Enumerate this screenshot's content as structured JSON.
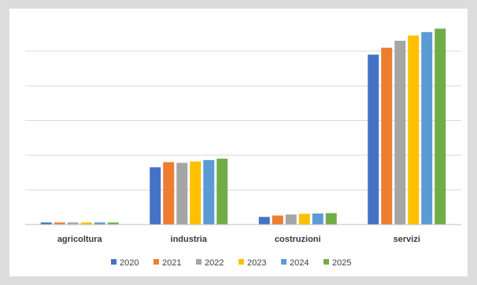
{
  "chart_data": {
    "type": "bar",
    "categories": [
      "agricoltura",
      "industria",
      "costruzioni",
      "servizi"
    ],
    "series": [
      {
        "name": "2020",
        "color": "#4472c4",
        "values": [
          0.6,
          16.5,
          2.2,
          49.0
        ]
      },
      {
        "name": "2021",
        "color": "#ed7d31",
        "values": [
          0.6,
          18.0,
          2.6,
          51.0
        ]
      },
      {
        "name": "2022",
        "color": "#a5a5a5",
        "values": [
          0.6,
          17.8,
          2.9,
          53.0
        ]
      },
      {
        "name": "2023",
        "color": "#ffc000",
        "values": [
          0.6,
          18.2,
          3.1,
          54.5
        ]
      },
      {
        "name": "2024",
        "color": "#5b9bd5",
        "values": [
          0.6,
          18.6,
          3.2,
          55.5
        ]
      },
      {
        "name": "2025",
        "color": "#70ad47",
        "values": [
          0.6,
          19.0,
          3.3,
          56.5
        ]
      }
    ],
    "ylim": [
      0,
      60
    ],
    "gridlines": [
      0,
      10,
      20,
      30,
      40,
      50
    ],
    "grid": true,
    "legend_position": "bottom"
  }
}
